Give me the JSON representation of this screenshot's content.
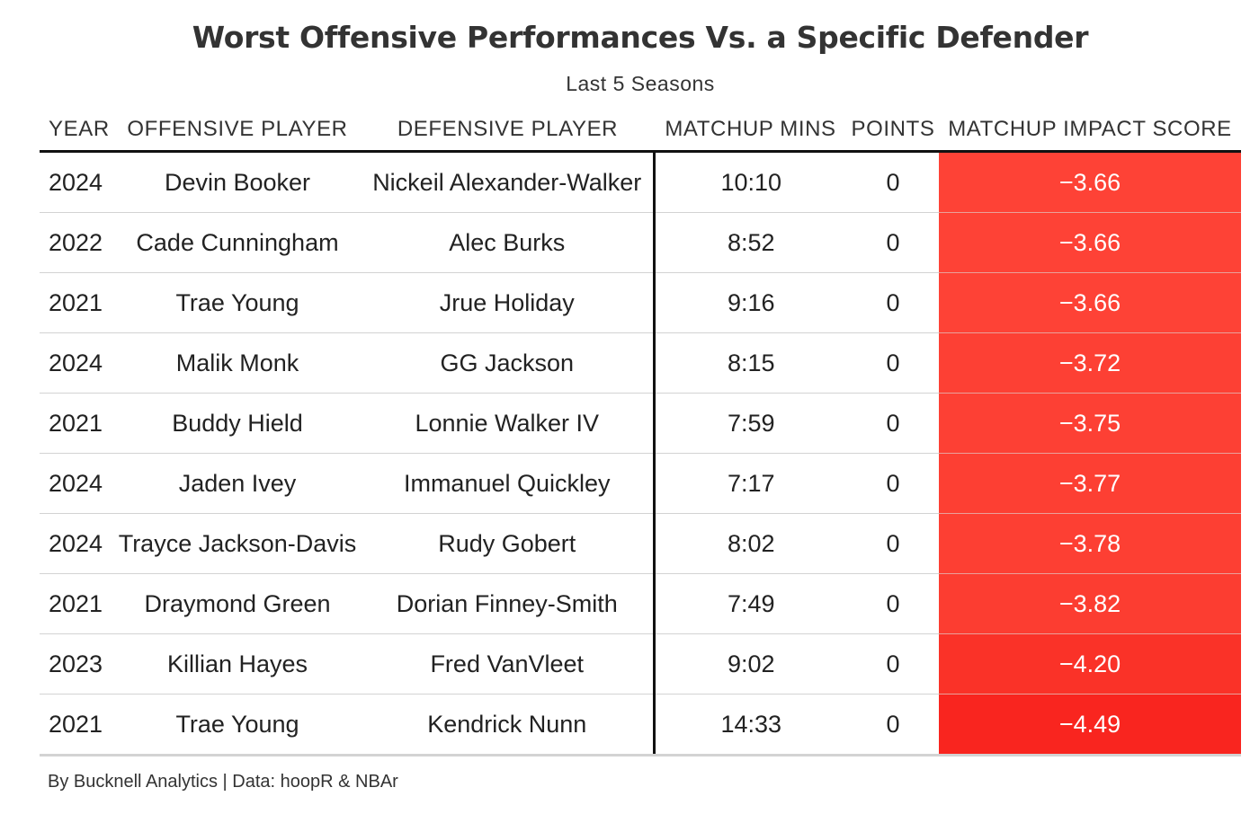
{
  "chart_data": {
    "type": "table",
    "title": "Worst Offensive Performances Vs. a Specific Defender",
    "subtitle": "Last 5 Seasons",
    "columns": [
      "YEAR",
      "OFFENSIVE PLAYER",
      "DEFENSIVE PLAYER",
      "MATCHUP MINS",
      "POINTS",
      "MATCHUP IMPACT SCORE"
    ],
    "rows": [
      {
        "year": "2024",
        "offensive_player": "Devin Booker",
        "defensive_player": "Nickeil Alexander-Walker",
        "matchup_mins": "10:10",
        "points": "0",
        "score": "−3.66"
      },
      {
        "year": "2022",
        "offensive_player": "Cade Cunningham",
        "defensive_player": "Alec Burks",
        "matchup_mins": "8:52",
        "points": "0",
        "score": "−3.66"
      },
      {
        "year": "2021",
        "offensive_player": "Trae Young",
        "defensive_player": "Jrue Holiday",
        "matchup_mins": "9:16",
        "points": "0",
        "score": "−3.66"
      },
      {
        "year": "2024",
        "offensive_player": "Malik Monk",
        "defensive_player": "GG Jackson",
        "matchup_mins": "8:15",
        "points": "0",
        "score": "−3.72"
      },
      {
        "year": "2021",
        "offensive_player": "Buddy Hield",
        "defensive_player": "Lonnie Walker IV",
        "matchup_mins": "7:59",
        "points": "0",
        "score": "−3.75"
      },
      {
        "year": "2024",
        "offensive_player": "Jaden Ivey",
        "defensive_player": "Immanuel Quickley",
        "matchup_mins": "7:17",
        "points": "0",
        "score": "−3.77"
      },
      {
        "year": "2024",
        "offensive_player": "Trayce Jackson-Davis",
        "defensive_player": "Rudy Gobert",
        "matchup_mins": "8:02",
        "points": "0",
        "score": "−3.78"
      },
      {
        "year": "2021",
        "offensive_player": "Draymond Green",
        "defensive_player": "Dorian Finney-Smith",
        "matchup_mins": "7:49",
        "points": "0",
        "score": "−3.82"
      },
      {
        "year": "2023",
        "offensive_player": "Killian Hayes",
        "defensive_player": "Fred VanVleet",
        "matchup_mins": "9:02",
        "points": "0",
        "score": "−4.20"
      },
      {
        "year": "2021",
        "offensive_player": "Trae Young",
        "defensive_player": "Kendrick Nunn",
        "matchup_mins": "14:33",
        "points": "0",
        "score": "−4.49"
      }
    ],
    "score_colors": [
      "#fe4236",
      "#fe4236",
      "#fe4236",
      "#fd4034",
      "#fd4034",
      "#fd3f33",
      "#fd3f33",
      "#fc3d31",
      "#fa3228",
      "#f9251f"
    ],
    "source": "By Bucknell Analytics | Data: hoopR & NBAr"
  }
}
